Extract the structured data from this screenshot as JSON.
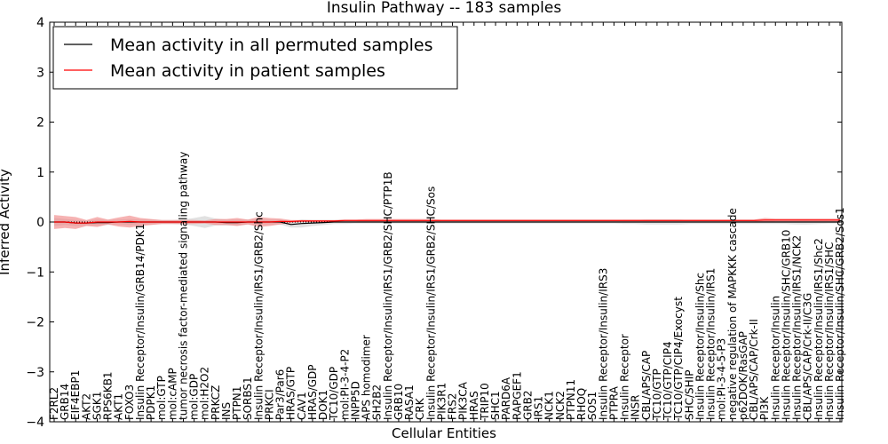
{
  "chart_data": {
    "type": "line",
    "title": "Insulin Pathway -- 183 samples",
    "xlabel": "Cellular Entities",
    "ylabel": "Inferred Activity",
    "ylim": [
      -4,
      4
    ],
    "yticks": [
      "−4",
      "−3",
      "−2",
      "−1",
      "0",
      "1",
      "2",
      "3",
      "4"
    ],
    "legend_position": "top-left",
    "grid": false,
    "categories": [
      "F2RL2",
      "GRB14",
      "EIF4EBP1",
      "AKT2",
      "SGK1",
      "RPS6KB1",
      "AKT1",
      "FOXO3",
      "Insulin Receptor/Insulin/GRB14/PDK1",
      "PDPK1",
      "mol:GTP",
      "mol:cAMP",
      "tumor necrosis factor-mediated signaling pathway",
      "mol:GDP",
      "mol:H2O2",
      "PRKCZ",
      "INS",
      "PTPN1",
      "SORBS1",
      "Insulin Receptor/Insulin/IRS1/GRB2/Shc",
      "PRKCI",
      "Par3/Par6",
      "HRAS/GTP",
      "CAV1",
      "HRAS/GDP",
      "DOK1",
      "TC10/GDP",
      "mol:PI-3-4-P2",
      "INPP5D",
      "APS homodimer",
      "SH2B2",
      "Insulin Receptor/Insulin/IRS1/GRB2/SHC/PTP1B",
      "GRB10",
      "RASA1",
      "CRK",
      "Insulin Receptor/Insulin/IRS1/GRB2/SHC/Sos",
      "PIK3R1",
      "FRS2",
      "PIK3CA",
      "HRAS",
      "TRIP10",
      "SHC1",
      "PARD6A",
      "RAPGEF1",
      "GRB2",
      "IRS1",
      "NCK1",
      "NCK2",
      "PTPN11",
      "RHOQ",
      "SOS1",
      "Insulin Receptor/Insulin/IRS3",
      "PTPRA",
      "Insulin Receptor",
      "INSR",
      "CBL/APS/CAP",
      "TC10/GTP",
      "TC10/GTP/CIP4",
      "TC10/GTP/CIP4/Exocyst",
      "SHC/SHIP",
      "Insulin Receptor/Insulin/Shc",
      "Insulin Receptor/Insulin/IRS1",
      "mol:PI-3-4-5-P3",
      "negative regulation of MAPKKK cascade",
      "p62DOK/RasGAP",
      "CBL/APS/CAP/Crk-II",
      "PI3K",
      "Insulin Receptor/Insulin",
      "Insulin Receptor/Insulin/SHC/GRB10",
      "Insulin Receptor/Insulin/IRS1/NCK2",
      "CBL/APS/CAP/Crk-II/C3G",
      "Insulin Receptor/Insulin/IRS1/Shc2",
      "Insulin Receptor/Insulin/IRS1/SHC",
      "Insulin Receptor/Insulin/SHC/GRB2/Sos1"
    ],
    "series": [
      {
        "name": "Mean activity in all permuted samples",
        "color": "#000000",
        "band_color": "#c8c8c8",
        "values": [
          0.0,
          0.0,
          -0.02,
          -0.02,
          -0.01,
          -0.01,
          0.0,
          0.0,
          0.0,
          0.0,
          0.0,
          0.0,
          0.0,
          0.0,
          0.0,
          0.0,
          -0.01,
          -0.01,
          0.0,
          0.0,
          0.0,
          0.0,
          -0.05,
          -0.03,
          -0.02,
          -0.01,
          0.0,
          0.0,
          0.0,
          0.0,
          0.0,
          0.0,
          0.0,
          0.0,
          0.0,
          0.0,
          0.0,
          0.0,
          0.0,
          0.0,
          0.0,
          0.0,
          0.0,
          0.0,
          0.0,
          0.0,
          0.0,
          0.0,
          0.0,
          0.0,
          0.0,
          0.0,
          0.0,
          0.0,
          0.0,
          0.0,
          0.0,
          0.0,
          0.0,
          0.0,
          0.0,
          0.0,
          0.0,
          0.0,
          0.0,
          0.0,
          0.0,
          0.0,
          0.0,
          0.0,
          0.0,
          0.0,
          0.0,
          0.0
        ],
        "band": [
          0.08,
          0.06,
          0.06,
          0.05,
          0.06,
          0.05,
          0.05,
          0.06,
          0.05,
          0.05,
          0.04,
          0.04,
          0.05,
          0.08,
          0.12,
          0.07,
          0.06,
          0.06,
          0.05,
          0.05,
          0.05,
          0.05,
          0.06,
          0.08,
          0.06,
          0.05,
          0.04,
          0.04,
          0.03,
          0.03,
          0.03,
          0.03,
          0.03,
          0.03,
          0.03,
          0.03,
          0.03,
          0.03,
          0.03,
          0.03,
          0.03,
          0.03,
          0.03,
          0.03,
          0.03,
          0.03,
          0.03,
          0.03,
          0.03,
          0.03,
          0.03,
          0.03,
          0.03,
          0.04,
          0.04,
          0.05,
          0.05,
          0.05,
          0.05,
          0.04,
          0.04,
          0.04,
          0.04,
          0.04,
          0.04,
          0.04,
          0.04,
          0.04,
          0.04,
          0.05,
          0.05,
          0.04,
          0.03,
          0.03
        ]
      },
      {
        "name": "Mean activity in patient samples",
        "color": "#ff0000",
        "band_color": "#f08080",
        "values": [
          0.0,
          0.0,
          -0.02,
          -0.02,
          0.0,
          0.0,
          0.0,
          0.01,
          0.0,
          0.0,
          0.0,
          0.0,
          0.0,
          0.0,
          0.0,
          0.0,
          0.0,
          0.0,
          0.0,
          0.0,
          0.0,
          0.01,
          0.01,
          0.02,
          0.02,
          0.02,
          0.02,
          0.03,
          0.03,
          0.03,
          0.03,
          0.03,
          0.03,
          0.03,
          0.03,
          0.03,
          0.03,
          0.03,
          0.03,
          0.03,
          0.03,
          0.03,
          0.03,
          0.03,
          0.03,
          0.03,
          0.03,
          0.03,
          0.03,
          0.03,
          0.03,
          0.03,
          0.03,
          0.03,
          0.03,
          0.03,
          0.03,
          0.03,
          0.03,
          0.03,
          0.03,
          0.03,
          0.03,
          0.03,
          0.03,
          0.03,
          0.04,
          0.04,
          0.04,
          0.04,
          0.04,
          0.04,
          0.04,
          0.04
        ],
        "band": [
          0.14,
          0.12,
          0.12,
          0.06,
          0.1,
          0.05,
          0.09,
          0.12,
          0.08,
          0.06,
          0.04,
          0.04,
          0.04,
          0.04,
          0.03,
          0.06,
          0.06,
          0.08,
          0.05,
          0.1,
          0.08,
          0.06,
          0.03,
          0.02,
          0.02,
          0.02,
          0.02,
          0.02,
          0.02,
          0.03,
          0.03,
          0.03,
          0.03,
          0.03,
          0.03,
          0.03,
          0.02,
          0.02,
          0.02,
          0.02,
          0.02,
          0.02,
          0.02,
          0.02,
          0.02,
          0.02,
          0.02,
          0.02,
          0.02,
          0.02,
          0.02,
          0.02,
          0.02,
          0.02,
          0.02,
          0.02,
          0.02,
          0.02,
          0.02,
          0.02,
          0.02,
          0.02,
          0.02,
          0.02,
          0.02,
          0.02,
          0.04,
          0.03,
          0.03,
          0.03,
          0.03,
          0.03,
          0.03,
          0.03
        ]
      }
    ]
  }
}
